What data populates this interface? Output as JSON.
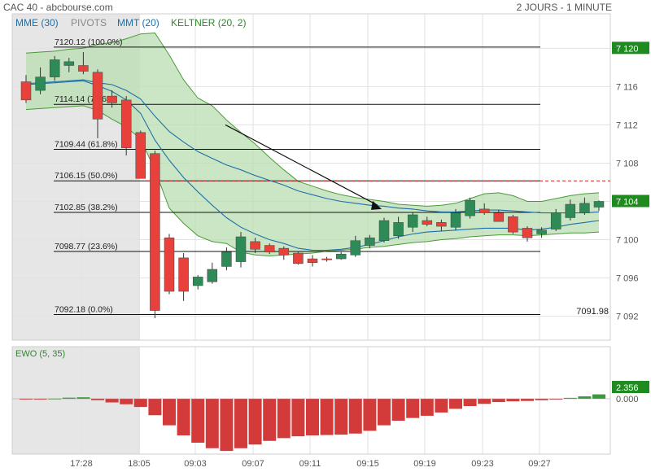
{
  "header": {
    "title": "CAC 40 - abcbourse.com",
    "period": "2 JOURS - 1 MINUTE"
  },
  "colors": {
    "up": "#2e8b57",
    "down": "#e8403a",
    "mme": "#1f6fa8",
    "mmt": "#1f6fa8",
    "keltner": "#4a9a3a",
    "keltner_fill": "#b9deb0",
    "grid": "#e2e2e2",
    "shade": "#e6e6e6",
    "ewo_up": "#3a9a3a",
    "ewo_down": "#d33a3a",
    "badge": "#1f8a1f"
  },
  "chart_data": [
    {
      "type": "candlestick",
      "indicators": [
        "MME (30)",
        "PIVOTS",
        "MMT (20)",
        "KELTNER (20, 2)"
      ],
      "x_ticks": [
        "17:28",
        "18:05",
        "09:03",
        "09:07",
        "09:11",
        "09:15",
        "09:19",
        "09:23",
        "09:27"
      ],
      "y_ticks": [
        "7 120",
        "7 116",
        "7 112",
        "7 108",
        "7 104",
        "7 100",
        "7 096",
        "7 092"
      ],
      "y_tick_values": [
        7120,
        7116,
        7112,
        7108,
        7104,
        7100,
        7096,
        7092
      ],
      "ylim": [
        7089.5,
        7123.6
      ],
      "last_price_label": "7 104",
      "last_price": 7104,
      "prev_close_badge": "7 120",
      "prev_close": 7120,
      "low_label": "7091.98",
      "low_value": 7091.98,
      "fib_levels": [
        {
          "price": 7120.12,
          "label": "7120.12  (100.0%)"
        },
        {
          "price": 7114.14,
          "label": "7114.14  (78.6%)"
        },
        {
          "price": 7109.44,
          "label": "7109.44  (61.8%)"
        },
        {
          "price": 7106.15,
          "label": "7106.15  (50.0%)",
          "dashed": true
        },
        {
          "price": 7102.85,
          "label": "7102.85  (38.2%)"
        },
        {
          "price": 7098.77,
          "label": "7098.77  (23.6%)"
        },
        {
          "price": 7092.18,
          "label": "7092.18  (0.0%)"
        }
      ],
      "candles": [
        {
          "o": 7116.5,
          "h": 7117.2,
          "l": 7114.3,
          "c": 7114.6
        },
        {
          "o": 7115.6,
          "h": 7118.0,
          "l": 7115.2,
          "c": 7117.0
        },
        {
          "o": 7117.0,
          "h": 7119.2,
          "l": 7116.6,
          "c": 7118.8
        },
        {
          "o": 7118.2,
          "h": 7119.0,
          "l": 7117.5,
          "c": 7118.6
        },
        {
          "o": 7118.2,
          "h": 7119.6,
          "l": 7117.3,
          "c": 7117.6
        },
        {
          "o": 7117.5,
          "h": 7117.8,
          "l": 7110.6,
          "c": 7112.6
        },
        {
          "o": 7115.0,
          "h": 7115.6,
          "l": 7113.8,
          "c": 7114.3
        },
        {
          "o": 7114.6,
          "h": 7115.0,
          "l": 7108.8,
          "c": 7109.6
        },
        {
          "o": 7111.2,
          "h": 7111.4,
          "l": 7106.4,
          "c": 7106.4
        },
        {
          "o": 7109.0,
          "h": 7109.3,
          "l": 7091.8,
          "c": 7092.6
        },
        {
          "o": 7100.2,
          "h": 7100.6,
          "l": 7094.3,
          "c": 7094.6
        },
        {
          "o": 7098.1,
          "h": 7098.6,
          "l": 7093.6,
          "c": 7094.6
        },
        {
          "o": 7095.2,
          "h": 7096.3,
          "l": 7094.8,
          "c": 7096.1
        },
        {
          "o": 7095.6,
          "h": 7097.6,
          "l": 7095.4,
          "c": 7096.9
        },
        {
          "o": 7097.2,
          "h": 7099.2,
          "l": 7096.8,
          "c": 7098.7
        },
        {
          "o": 7097.7,
          "h": 7100.8,
          "l": 7097.1,
          "c": 7100.3
        },
        {
          "o": 7099.8,
          "h": 7100.2,
          "l": 7098.6,
          "c": 7099.0
        },
        {
          "o": 7099.4,
          "h": 7099.6,
          "l": 7098.5,
          "c": 7098.7
        },
        {
          "o": 7099.1,
          "h": 7099.3,
          "l": 7097.9,
          "c": 7098.4
        },
        {
          "o": 7098.6,
          "h": 7098.8,
          "l": 7097.4,
          "c": 7097.5
        },
        {
          "o": 7098.0,
          "h": 7098.4,
          "l": 7097.2,
          "c": 7097.6
        },
        {
          "o": 7098.0,
          "h": 7098.2,
          "l": 7097.7,
          "c": 7097.9
        },
        {
          "o": 7098.0,
          "h": 7098.7,
          "l": 7097.9,
          "c": 7098.5
        },
        {
          "o": 7098.4,
          "h": 7100.4,
          "l": 7098.2,
          "c": 7099.9
        },
        {
          "o": 7099.4,
          "h": 7100.5,
          "l": 7099.1,
          "c": 7100.2
        },
        {
          "o": 7099.9,
          "h": 7102.3,
          "l": 7099.7,
          "c": 7102.0
        },
        {
          "o": 7100.4,
          "h": 7102.4,
          "l": 7100.1,
          "c": 7101.8
        },
        {
          "o": 7101.3,
          "h": 7102.8,
          "l": 7100.8,
          "c": 7102.6
        },
        {
          "o": 7102.0,
          "h": 7102.4,
          "l": 7101.4,
          "c": 7101.6
        },
        {
          "o": 7101.8,
          "h": 7102.1,
          "l": 7100.9,
          "c": 7101.4
        },
        {
          "o": 7101.3,
          "h": 7103.2,
          "l": 7101.0,
          "c": 7102.8
        },
        {
          "o": 7102.5,
          "h": 7104.4,
          "l": 7102.2,
          "c": 7104.1
        },
        {
          "o": 7103.2,
          "h": 7103.8,
          "l": 7102.6,
          "c": 7102.8
        },
        {
          "o": 7102.8,
          "h": 7103.1,
          "l": 7101.9,
          "c": 7101.9
        },
        {
          "o": 7102.4,
          "h": 7102.6,
          "l": 7100.6,
          "c": 7100.8
        },
        {
          "o": 7101.2,
          "h": 7101.4,
          "l": 7099.8,
          "c": 7100.2
        },
        {
          "o": 7100.6,
          "h": 7101.3,
          "l": 7100.2,
          "c": 7101.0
        },
        {
          "o": 7101.1,
          "h": 7103.2,
          "l": 7100.9,
          "c": 7102.8
        },
        {
          "o": 7102.3,
          "h": 7104.2,
          "l": 7102.0,
          "c": 7103.7
        },
        {
          "o": 7102.8,
          "h": 7104.4,
          "l": 7102.6,
          "c": 7103.8
        },
        {
          "o": 7103.4,
          "h": 7104.1,
          "l": 7103.0,
          "c": 7104.0
        }
      ],
      "keltner_upper": [
        7119.5,
        7119.6,
        7119.7,
        7119.9,
        7120.0,
        7120.4,
        7120.6,
        7121.0,
        7121.5,
        7121.6,
        7119.3,
        7116.7,
        7114.8,
        7114.0,
        7112.5,
        7111.2,
        7110.0,
        7108.6,
        7107.3,
        7106.1,
        7105.6,
        7105.1,
        7104.7,
        7104.4,
        7104.2,
        7104.0,
        7103.7,
        7103.6,
        7103.5,
        7103.6,
        7103.8,
        7104.3,
        7104.8,
        7104.9,
        7104.6,
        7104.0,
        7104.0,
        7104.3,
        7104.6,
        7104.8,
        7104.9
      ],
      "keltner_lower": [
        7113.6,
        7113.7,
        7113.8,
        7113.9,
        7114.0,
        7113.5,
        7112.6,
        7111.8,
        7110.5,
        7107.3,
        7103.3,
        7101.7,
        7100.4,
        7099.8,
        7099.6,
        7098.7,
        7098.4,
        7098.3,
        7098.4,
        7098.5,
        7098.6,
        7098.8,
        7098.9,
        7099.0,
        7099.2,
        7099.3,
        7099.5,
        7099.7,
        7099.8,
        7100.0,
        7100.1,
        7100.3,
        7100.4,
        7100.5,
        7100.5,
        7100.4,
        7100.5,
        7100.6,
        7100.7,
        7100.7,
        7100.8
      ],
      "mme_30": [
        7116.3,
        7116.4,
        7116.5,
        7116.6,
        7116.7,
        7116.4,
        7116.2,
        7115.6,
        7114.7,
        7112.9,
        7111.3,
        7110.2,
        7109.2,
        7108.5,
        7107.8,
        7107.3,
        7106.7,
        7106.2,
        7105.7,
        7105.1,
        7104.7,
        7104.3,
        7104.0,
        7103.8,
        7103.6,
        7103.5,
        7103.3,
        7103.2,
        7103.0,
        7102.9,
        7102.9,
        7103.0,
        7103.1,
        7103.1,
        7103.0,
        7102.9,
        7102.8,
        7102.8,
        7102.8,
        7102.8,
        7102.9
      ],
      "mmt_20": [
        7116.2,
        7116.3,
        7116.4,
        7116.5,
        7116.6,
        7116.1,
        7115.5,
        7114.6,
        7113.2,
        7110.4,
        7108.3,
        7106.5,
        7105.0,
        7103.6,
        7102.3,
        7101.3,
        7100.6,
        7100.0,
        7099.6,
        7099.1,
        7098.9,
        7098.9,
        7099.0,
        7099.2,
        7099.5,
        7099.9,
        7100.3,
        7100.6,
        7100.8,
        7100.9,
        7101.0,
        7101.1,
        7101.2,
        7101.2,
        7101.2,
        7101.0,
        7101.1,
        7101.3,
        7101.6,
        7101.8,
        7102.0
      ]
    },
    {
      "type": "bar",
      "title": "EWO (5, 35)",
      "last_value_label": "2.356",
      "zero_label": "0.000",
      "values": [
        -0.3,
        -0.4,
        0.1,
        0.6,
        0.8,
        -0.8,
        -2.0,
        -3.0,
        -4.5,
        -9.0,
        -14.5,
        -20.0,
        -24.0,
        -27.0,
        -28.5,
        -27.0,
        -25.0,
        -23.0,
        -21.5,
        -20.5,
        -20.0,
        -19.8,
        -19.6,
        -19.0,
        -17.5,
        -14.5,
        -12.0,
        -10.5,
        -9.3,
        -7.5,
        -5.5,
        -4.0,
        -2.8,
        -1.8,
        -1.4,
        -1.2,
        -0.8,
        -0.4,
        0.5,
        1.3,
        2.4
      ]
    }
  ]
}
